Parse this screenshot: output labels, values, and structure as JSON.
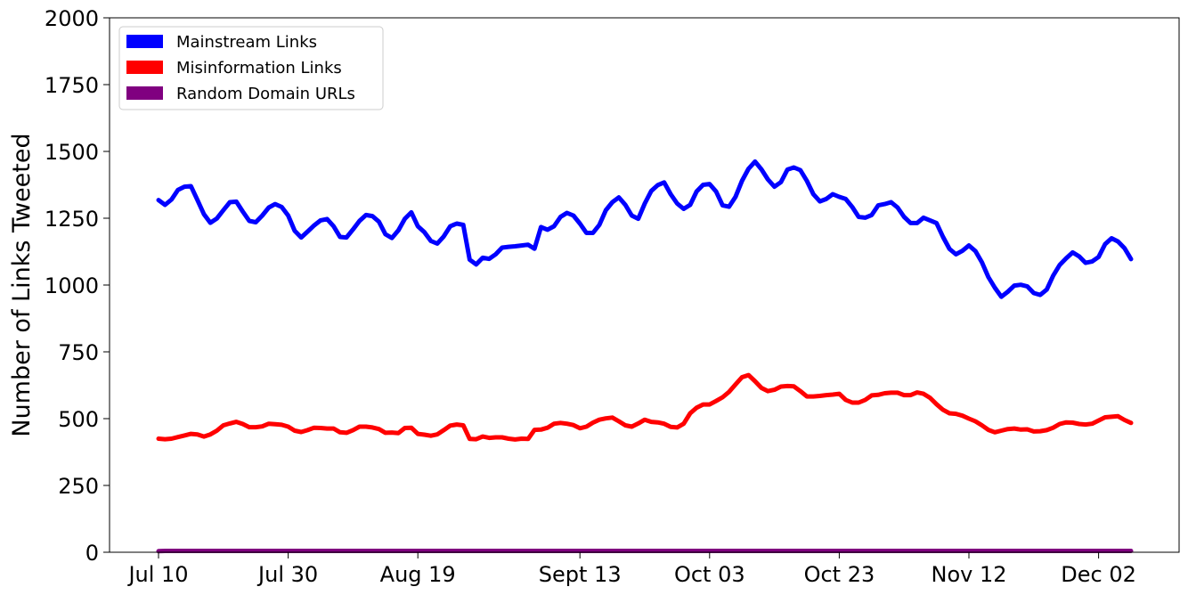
{
  "chart_data": {
    "type": "line",
    "title": "",
    "xlabel": "",
    "ylabel": "Number of Links Tweeted",
    "ylim": [
      0,
      2000
    ],
    "y_ticks": [
      0,
      250,
      500,
      750,
      1000,
      1250,
      1500,
      1750,
      2000
    ],
    "x_ticks": [
      "Jul 10",
      "Jul 30",
      "Aug 19",
      "Sept 13",
      "Oct 03",
      "Oct 23",
      "Nov 12",
      "Dec 02"
    ],
    "grid": false,
    "legend_position": "top-left",
    "x_start": "Jul 10",
    "series": [
      {
        "name": "Mainstream Links",
        "color": "#0000ff",
        "values": [
          1318,
          1300,
          1320,
          1356,
          1368,
          1370,
          1318,
          1265,
          1233,
          1249,
          1280,
          1310,
          1312,
          1275,
          1240,
          1235,
          1260,
          1290,
          1303,
          1292,
          1260,
          1203,
          1178,
          1200,
          1223,
          1242,
          1247,
          1220,
          1180,
          1178,
          1208,
          1240,
          1262,
          1258,
          1237,
          1190,
          1176,
          1205,
          1248,
          1272,
          1220,
          1198,
          1165,
          1155,
          1182,
          1220,
          1230,
          1225,
          1095,
          1077,
          1102,
          1098,
          1115,
          1140,
          1143,
          1145,
          1148,
          1151,
          1136,
          1217,
          1207,
          1220,
          1255,
          1270,
          1260,
          1230,
          1195,
          1195,
          1225,
          1280,
          1310,
          1328,
          1300,
          1260,
          1248,
          1305,
          1352,
          1374,
          1384,
          1340,
          1305,
          1285,
          1300,
          1350,
          1375,
          1378,
          1350,
          1298,
          1293,
          1330,
          1390,
          1435,
          1462,
          1433,
          1395,
          1368,
          1385,
          1432,
          1440,
          1430,
          1390,
          1340,
          1313,
          1322,
          1340,
          1330,
          1322,
          1292,
          1255,
          1252,
          1262,
          1298,
          1303,
          1310,
          1290,
          1255,
          1232,
          1232,
          1252,
          1242,
          1232,
          1180,
          1135,
          1115,
          1128,
          1148,
          1127,
          1085,
          1030,
          990,
          956,
          975,
          998,
          1001,
          995,
          970,
          963,
          983,
          1035,
          1075,
          1100,
          1122,
          1107,
          1083,
          1088,
          1105,
          1153,
          1175,
          1163,
          1138,
          1097
        ]
      },
      {
        "name": "Misinformation Links",
        "color": "#ff0000",
        "values": [
          425,
          423,
          425,
          431,
          437,
          443,
          441,
          433,
          441,
          455,
          475,
          482,
          488,
          480,
          468,
          468,
          471,
          481,
          479,
          477,
          470,
          455,
          450,
          457,
          466,
          465,
          463,
          463,
          449,
          447,
          457,
          470,
          470,
          467,
          461,
          447,
          448,
          446,
          465,
          466,
          443,
          440,
          436,
          441,
          457,
          474,
          478,
          475,
          424,
          423,
          433,
          428,
          430,
          430,
          425,
          422,
          425,
          424,
          458,
          459,
          466,
          481,
          484,
          481,
          476,
          464,
          470,
          485,
          496,
          501,
          504,
          490,
          475,
          470,
          482,
          496,
          488,
          486,
          481,
          469,
          467,
          481,
          520,
          541,
          553,
          553,
          566,
          580,
          600,
          628,
          655,
          663,
          640,
          615,
          603,
          608,
          620,
          622,
          621,
          603,
          583,
          583,
          585,
          588,
          590,
          593,
          570,
          560,
          560,
          570,
          587,
          589,
          595,
          597,
          597,
          588,
          588,
          598,
          593,
          578,
          554,
          533,
          520,
          518,
          511,
          500,
          490,
          475,
          458,
          449,
          455,
          461,
          463,
          459,
          460,
          452,
          453,
          457,
          466,
          480,
          486,
          485,
          480,
          478,
          481,
          493,
          505,
          507,
          509,
          495,
          484
        ]
      },
      {
        "name": "Random Domain URLs",
        "color": "#800080",
        "values": [
          4,
          5,
          5,
          5,
          5,
          5,
          5,
          5,
          5,
          5,
          5,
          5,
          5,
          5,
          5,
          5,
          5,
          5,
          5,
          5,
          5,
          5,
          5,
          5,
          5,
          5,
          5,
          5,
          5,
          5,
          5,
          5,
          5,
          5,
          5,
          5,
          5,
          5,
          5,
          5,
          5,
          5,
          5,
          5,
          5,
          5,
          5,
          5,
          5,
          5,
          5,
          5,
          5,
          5,
          5,
          5,
          5,
          5,
          5,
          5,
          5,
          5,
          5,
          5,
          5,
          5,
          5,
          5,
          5,
          5,
          5,
          5,
          5,
          5,
          5,
          5,
          5,
          5,
          5,
          5,
          5,
          5,
          5,
          5,
          5,
          5,
          5,
          5,
          5,
          5,
          5,
          5,
          5,
          5,
          5,
          5,
          5,
          5,
          5,
          5,
          5,
          5,
          5,
          5,
          5,
          5,
          5,
          5,
          5,
          5,
          5,
          5,
          5,
          5,
          5,
          5,
          5,
          5,
          5,
          5,
          5,
          5,
          5,
          5,
          5,
          5,
          5,
          5,
          5,
          5,
          5,
          5,
          5,
          5,
          5,
          5,
          5,
          5,
          5,
          5,
          5,
          5,
          5,
          5,
          5,
          5,
          5,
          5,
          5,
          5,
          5
        ]
      }
    ]
  }
}
